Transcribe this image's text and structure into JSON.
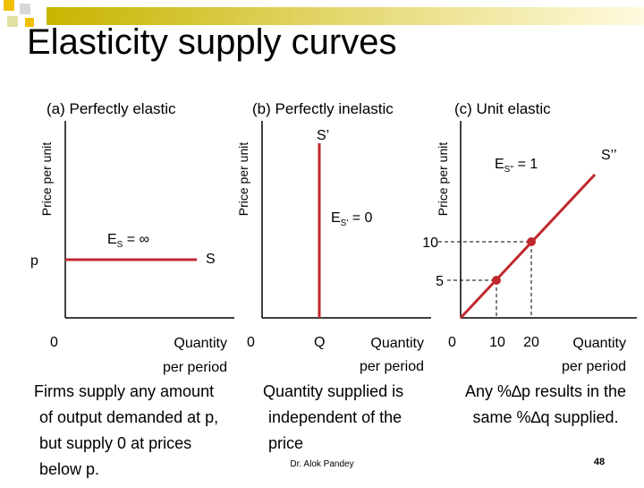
{
  "header": {
    "title": "Elasticity supply curves"
  },
  "panels": [
    {
      "label": "(a) Perfectly elastic",
      "y_axis_label": "Price per unit",
      "x_axis_label": [
        "Quantity",
        "per period"
      ],
      "origin": "0",
      "price_label": "p",
      "curve_label": "S",
      "elasticity": {
        "symbol": "E",
        "subscript": "S",
        "rest": " = ∞"
      },
      "caption": [
        "Firms supply any amount",
        "of output demanded at p,",
        "but supply 0 at prices",
        "below p."
      ]
    },
    {
      "label": "(b) Perfectly inelastic",
      "y_axis_label": "Price per unit",
      "x_axis_label": [
        "Quantity",
        "per period"
      ],
      "origin": "0",
      "quantity_label": "Q",
      "curve_label": "S’",
      "elasticity": {
        "symbol": "E",
        "subscript": "S'",
        "rest": " = 0"
      },
      "caption": [
        "Quantity supplied is",
        "independent of the",
        "price"
      ]
    },
    {
      "label": "(c) Unit elastic",
      "y_axis_label": "Price per unit",
      "x_axis_label": [
        "Quantity",
        "per period"
      ],
      "origin": "0",
      "curve_label": "S’’",
      "elasticity": {
        "symbol": "E",
        "subscript": "S''",
        "rest": " = 1"
      },
      "price_ticks": [
        "10",
        "5"
      ],
      "quantity_ticks": [
        "10",
        "20"
      ],
      "caption": [
        "Any %∆p results in the",
        "same %∆q  supplied."
      ]
    }
  ],
  "footer": {
    "author": "Dr. Alok Pandey",
    "page": "48"
  }
}
